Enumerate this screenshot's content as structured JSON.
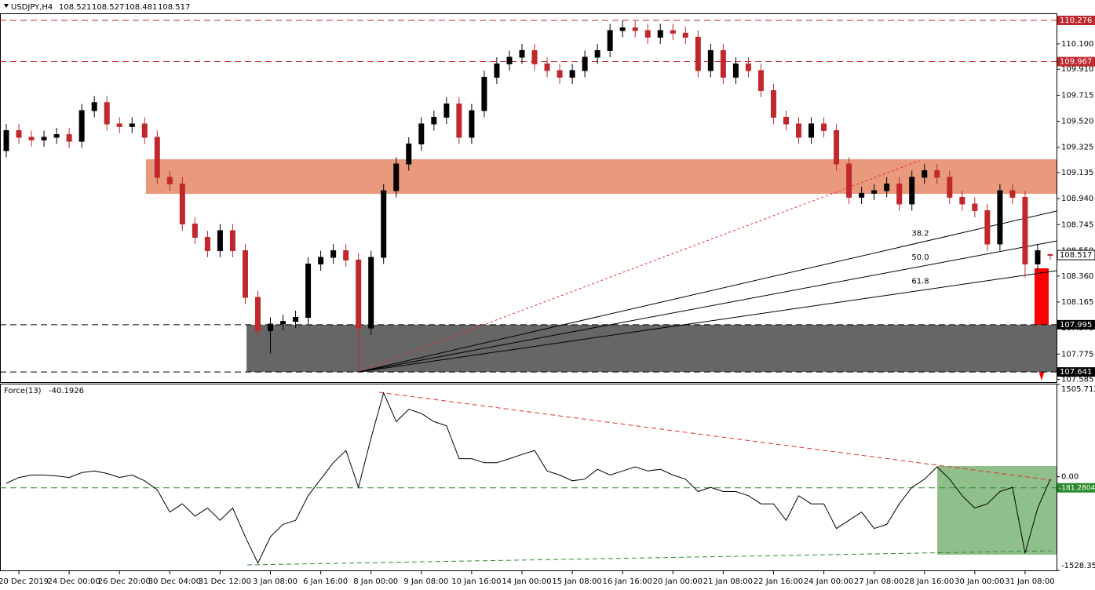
{
  "chart_data": [
    {
      "type": "candlestick",
      "title": "USDJPY,H4",
      "xlim": [
        0,
        84
      ],
      "xticks": [
        {
          "value": 1,
          "label": "20 Dec 2019"
        },
        {
          "value": 5,
          "label": "24 Dec 00:00"
        },
        {
          "value": 9,
          "label": "26 Dec 20:00"
        },
        {
          "value": 13,
          "label": "30 Dec 04:00"
        },
        {
          "value": 17,
          "label": "31 Dec 12:00"
        },
        {
          "value": 21,
          "label": "3 Jan 08:00"
        },
        {
          "value": 25,
          "label": "6 Jan 16:00"
        },
        {
          "value": 29,
          "label": "8 Jan 00:00"
        },
        {
          "value": 33,
          "label": "9 Jan 08:00"
        },
        {
          "value": 37,
          "label": "10 Jan 16:00"
        },
        {
          "value": 41,
          "label": "14 Jan 00:00"
        },
        {
          "value": 45,
          "label": "15 Jan 08:00"
        },
        {
          "value": 49,
          "label": "16 Jan 16:00"
        },
        {
          "value": 53,
          "label": "20 Jan 00:00"
        },
        {
          "value": 57,
          "label": "21 Jan 08:00"
        },
        {
          "value": 61,
          "label": "22 Jan 16:00"
        },
        {
          "value": 65,
          "label": "24 Jan 00:00"
        },
        {
          "value": 69,
          "label": "27 Jan 08:00"
        },
        {
          "value": 73,
          "label": "28 Jan 16:00"
        },
        {
          "value": 77,
          "label": "30 Jan 00:00"
        },
        {
          "value": 81,
          "label": "31 Jan 08:00"
        }
      ],
      "ylim": [
        107.565,
        110.323
      ],
      "yticks": [
        {
          "value": 110.1,
          "label": "110.100"
        },
        {
          "value": 109.91,
          "label": "109.910"
        },
        109.715,
        {
          "value": 109.52,
          "label": "109.520"
        },
        109.325,
        109.135,
        {
          "value": 108.94,
          "label": "108.940"
        },
        108.745,
        {
          "value": 108.55,
          "label": "108.550"
        },
        {
          "value": 108.36,
          "label": "108.360"
        },
        108.165,
        {
          "value": 107.97,
          "label": "107.970"
        },
        107.775,
        107.585
      ],
      "up_color": "#000000",
      "down_color": "#c0282d",
      "open": [
        109.3,
        109.45,
        109.4,
        109.38,
        109.4,
        109.42,
        109.37,
        109.6,
        109.66,
        109.5,
        109.48,
        109.5,
        109.4,
        109.1,
        109.05,
        108.75,
        108.65,
        108.55,
        108.7,
        108.55,
        108.2,
        107.95,
        108.0,
        108.02,
        108.05,
        108.45,
        108.5,
        108.55,
        108.48,
        107.97,
        108.5,
        109.0,
        109.2,
        109.35,
        109.5,
        109.55,
        109.65,
        109.4,
        109.6,
        109.85,
        109.95,
        110.0,
        110.05,
        109.95,
        109.9,
        109.85,
        109.9,
        110.0,
        110.05,
        110.2,
        110.22,
        110.2,
        110.15,
        110.2,
        110.18,
        110.15,
        109.9,
        110.05,
        109.85,
        109.95,
        109.9,
        109.75,
        109.55,
        109.5,
        109.4,
        109.5,
        109.45,
        109.2,
        108.95,
        108.98,
        109.0,
        109.05,
        108.9,
        109.1,
        109.15,
        109.1,
        108.95,
        108.9,
        108.85,
        108.6,
        109.0,
        108.95,
        108.45,
        108.521
      ],
      "high": [
        109.5,
        109.5,
        109.45,
        109.45,
        109.47,
        109.47,
        109.65,
        109.71,
        109.71,
        109.55,
        109.55,
        109.55,
        109.45,
        109.15,
        109.1,
        108.8,
        108.7,
        108.75,
        108.75,
        108.6,
        108.25,
        108.05,
        108.07,
        108.1,
        108.5,
        108.55,
        108.6,
        108.6,
        108.53,
        108.55,
        109.05,
        109.25,
        109.4,
        109.55,
        109.6,
        109.7,
        109.7,
        109.65,
        109.9,
        110.0,
        110.05,
        110.1,
        110.1,
        110.0,
        109.95,
        109.95,
        110.05,
        110.1,
        110.25,
        110.276,
        110.27,
        110.25,
        110.25,
        110.25,
        110.23,
        110.2,
        110.1,
        110.1,
        110.0,
        110.0,
        109.95,
        109.8,
        109.6,
        109.55,
        109.55,
        109.55,
        109.5,
        109.25,
        109.03,
        109.05,
        109.1,
        109.1,
        109.15,
        109.2,
        109.2,
        109.15,
        109.0,
        108.95,
        108.9,
        109.05,
        109.05,
        109.0,
        108.6,
        108.527
      ],
      "low": [
        109.25,
        109.35,
        109.33,
        109.33,
        109.35,
        109.32,
        109.32,
        109.55,
        109.45,
        109.43,
        109.43,
        109.35,
        109.05,
        109.0,
        108.7,
        108.6,
        108.5,
        108.5,
        108.5,
        108.15,
        107.9,
        107.78,
        107.95,
        107.97,
        108.0,
        108.4,
        108.45,
        108.43,
        107.641,
        107.92,
        108.45,
        108.95,
        109.15,
        109.3,
        109.45,
        109.5,
        109.35,
        109.35,
        109.55,
        109.8,
        109.9,
        109.95,
        109.9,
        109.85,
        109.8,
        109.8,
        109.85,
        109.95,
        110.0,
        110.15,
        110.15,
        110.1,
        110.1,
        110.13,
        110.1,
        109.85,
        109.85,
        109.8,
        109.8,
        109.85,
        109.7,
        109.5,
        109.45,
        109.35,
        109.35,
        109.4,
        109.15,
        108.9,
        108.9,
        108.93,
        108.95,
        108.85,
        108.85,
        109.05,
        109.05,
        108.9,
        108.85,
        108.8,
        108.55,
        108.55,
        108.9,
        108.35,
        108.4,
        108.481
      ],
      "close": [
        109.45,
        109.4,
        109.38,
        109.4,
        109.42,
        109.37,
        109.6,
        109.66,
        109.5,
        109.48,
        109.5,
        109.4,
        109.1,
        109.05,
        108.75,
        108.65,
        108.55,
        108.7,
        108.55,
        108.2,
        107.95,
        108.0,
        108.02,
        108.05,
        108.45,
        108.5,
        108.55,
        108.48,
        107.97,
        108.5,
        109.0,
        109.2,
        109.35,
        109.5,
        109.55,
        109.65,
        109.4,
        109.6,
        109.85,
        109.95,
        110.0,
        110.05,
        109.95,
        109.9,
        109.85,
        109.9,
        110.0,
        110.05,
        110.2,
        110.22,
        110.2,
        110.15,
        110.2,
        110.18,
        110.15,
        109.9,
        110.05,
        109.85,
        109.95,
        109.9,
        109.75,
        109.55,
        109.5,
        109.4,
        109.5,
        109.45,
        109.2,
        108.95,
        108.98,
        109.0,
        109.05,
        108.9,
        109.1,
        109.15,
        109.1,
        108.95,
        108.9,
        108.85,
        108.6,
        109.0,
        108.95,
        108.45,
        108.55,
        108.517
      ],
      "levels": [
        {
          "value": 110.276,
          "color": "#c0282d"
        },
        {
          "value": 109.967,
          "color": "#c0282d"
        },
        {
          "value": 107.995,
          "color": "#000000"
        },
        {
          "value": 107.641,
          "color": "#000000"
        }
      ],
      "zones": [
        {
          "from": 11.6,
          "top": 109.235,
          "bottom": 108.976,
          "color": "#e99a7c"
        },
        {
          "from": 19.6,
          "top": 107.995,
          "bottom": 107.641,
          "color": "#666666"
        }
      ],
      "trend": {
        "start": [
          28,
          107.641
        ],
        "end": [
          72.6,
          109.224
        ],
        "color": "#e03030"
      },
      "fan": [
        {
          "label": "38.2",
          "end": 108.847
        },
        {
          "label": "50.0",
          "end": 108.623
        },
        {
          "label": "61.8",
          "end": 108.4
        }
      ]
    },
    {
      "type": "line",
      "title": "Force(13)",
      "color": "#000000",
      "ylim": [
        -1528.357,
        1505.7129
      ],
      "yticks": [
        1505.7129,
        {
          "value": 0,
          "label": "0.00"
        },
        -1528.357
      ],
      "levels": [
        {
          "value": -181.2804,
          "color": "#2e8b2e"
        }
      ],
      "values": [
        -107,
        -13,
        27,
        27,
        13,
        -13,
        67,
        94,
        54,
        -13,
        27,
        -67,
        -215,
        -577,
        -443,
        -644,
        -510,
        -711,
        -510,
        -980,
        -1409,
        -980,
        -778,
        -711,
        -309,
        -40,
        228,
        429,
        -174,
        631,
        1369,
        899,
        1100,
        1033,
        899,
        832,
        295,
        295,
        228,
        228,
        295,
        362,
        429,
        94,
        27,
        -67,
        -40,
        121,
        27,
        94,
        161,
        94,
        121,
        27,
        -40,
        -242,
        -174,
        -242,
        -242,
        -309,
        -443,
        -443,
        -711,
        -309,
        -443,
        -443,
        -845,
        -711,
        -577,
        -845,
        -778,
        -443,
        -174,
        -40,
        161,
        -40,
        -309,
        -510,
        -443,
        -242,
        -174,
        -1248,
        -510,
        -40.1926
      ]
    }
  ]
}
